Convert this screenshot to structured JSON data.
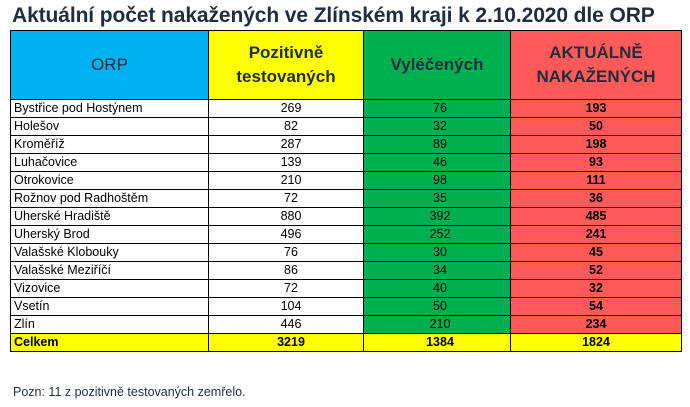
{
  "title": "Aktuální počet nakažených ve Zlínském kraji k 2.10.2020 dle ORP",
  "headers": {
    "orp": "ORP",
    "positive": "Pozitivně testovaných",
    "recovered": "Vyléčených",
    "active": "AKTUÁLNĚ NAKAŽENÝCH"
  },
  "colors": {
    "orp_header": "#00b0f0",
    "positive": "#ffff00",
    "recovered": "#00b050",
    "active": "#ff5a5a"
  },
  "rows": [
    {
      "orp": "Bystřice pod Hostýnem",
      "positive": "269",
      "recovered": "76",
      "active": "193"
    },
    {
      "orp": "Holešov",
      "positive": "82",
      "recovered": "32",
      "active": "50"
    },
    {
      "orp": "Kroměříž",
      "positive": "287",
      "recovered": "89",
      "active": "198"
    },
    {
      "orp": "Luhačovice",
      "positive": "139",
      "recovered": "46",
      "active": "93"
    },
    {
      "orp": "Otrokovice",
      "positive": "210",
      "recovered": "98",
      "active": "111"
    },
    {
      "orp": "Rožnov pod Radhoštěm",
      "positive": "72",
      "recovered": "35",
      "active": "36"
    },
    {
      "orp": "Uherské Hradiště",
      "positive": "880",
      "recovered": "392",
      "active": "485"
    },
    {
      "orp": "Uherský Brod",
      "positive": "496",
      "recovered": "252",
      "active": "241"
    },
    {
      "orp": "Valašské Klobouky",
      "positive": "76",
      "recovered": "30",
      "active": "45"
    },
    {
      "orp": "Valašské Meziříčí",
      "positive": "86",
      "recovered": "34",
      "active": "52"
    },
    {
      "orp": "Vizovice",
      "positive": "72",
      "recovered": "40",
      "active": "32"
    },
    {
      "orp": "Vsetín",
      "positive": "104",
      "recovered": "50",
      "active": "54"
    },
    {
      "orp": "Zlín",
      "positive": "446",
      "recovered": "210",
      "active": "234"
    }
  ],
  "total": {
    "orp": "Celkem",
    "positive": "3219",
    "recovered": "1384",
    "active": "1824"
  },
  "note": "Pozn: 11 z pozitivně testovaných zemřelo."
}
